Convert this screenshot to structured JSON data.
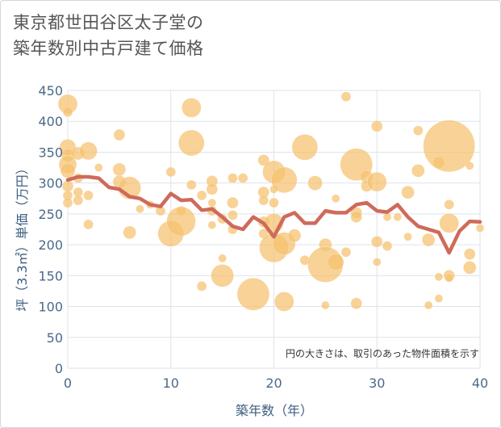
{
  "chart_data": {
    "type": "scatter",
    "title_lines": [
      "東京都世田谷区太子堂の",
      "築年数別中古戸建て価格"
    ],
    "xlabel": "築年数（年）",
    "ylabel": "坪（3.3㎡）単価（万円）",
    "xlim": [
      0,
      40
    ],
    "ylim": [
      0,
      450
    ],
    "xticks": [
      0,
      10,
      20,
      30,
      40
    ],
    "yticks": [
      0,
      50,
      100,
      150,
      200,
      250,
      300,
      350,
      400,
      450
    ],
    "grid": true,
    "annotation": "円の大きさは、取引のあった物件面積を示す",
    "colors": {
      "bubble": "#f5c06e",
      "line": "#cf6a5a",
      "grid": "#dde3ea"
    },
    "bubbles": [
      {
        "x": 0,
        "y": 428,
        "s": 12
      },
      {
        "x": 0,
        "y": 415,
        "s": 6
      },
      {
        "x": 0,
        "y": 358,
        "s": 10
      },
      {
        "x": 0,
        "y": 345,
        "s": 8
      },
      {
        "x": 0,
        "y": 330,
        "s": 11
      },
      {
        "x": 0,
        "y": 320,
        "s": 9
      },
      {
        "x": 0,
        "y": 295,
        "s": 7
      },
      {
        "x": 0,
        "y": 280,
        "s": 6
      },
      {
        "x": 0,
        "y": 268,
        "s": 6
      },
      {
        "x": 1,
        "y": 348,
        "s": 8
      },
      {
        "x": 1,
        "y": 308,
        "s": 6
      },
      {
        "x": 1,
        "y": 285,
        "s": 6
      },
      {
        "x": 1,
        "y": 272,
        "s": 6
      },
      {
        "x": 2,
        "y": 352,
        "s": 11
      },
      {
        "x": 2,
        "y": 280,
        "s": 6
      },
      {
        "x": 2,
        "y": 233,
        "s": 6
      },
      {
        "x": 3,
        "y": 325,
        "s": 5
      },
      {
        "x": 5,
        "y": 378,
        "s": 7
      },
      {
        "x": 5,
        "y": 322,
        "s": 8
      },
      {
        "x": 5,
        "y": 302,
        "s": 8
      },
      {
        "x": 6,
        "y": 292,
        "s": 14
      },
      {
        "x": 6,
        "y": 220,
        "s": 8
      },
      {
        "x": 7,
        "y": 258,
        "s": 5
      },
      {
        "x": 8,
        "y": 265,
        "s": 5
      },
      {
        "x": 9,
        "y": 255,
        "s": 6
      },
      {
        "x": 10,
        "y": 318,
        "s": 6
      },
      {
        "x": 10,
        "y": 218,
        "s": 16
      },
      {
        "x": 11,
        "y": 255,
        "s": 6
      },
      {
        "x": 11,
        "y": 238,
        "s": 18
      },
      {
        "x": 12,
        "y": 422,
        "s": 12
      },
      {
        "x": 12,
        "y": 365,
        "s": 16
      },
      {
        "x": 12,
        "y": 297,
        "s": 6
      },
      {
        "x": 13,
        "y": 280,
        "s": 6
      },
      {
        "x": 13,
        "y": 133,
        "s": 6
      },
      {
        "x": 14,
        "y": 303,
        "s": 7
      },
      {
        "x": 14,
        "y": 290,
        "s": 7
      },
      {
        "x": 14,
        "y": 268,
        "s": 5
      },
      {
        "x": 14,
        "y": 255,
        "s": 6
      },
      {
        "x": 14,
        "y": 232,
        "s": 5
      },
      {
        "x": 15,
        "y": 242,
        "s": 6
      },
      {
        "x": 15,
        "y": 178,
        "s": 5
      },
      {
        "x": 15,
        "y": 150,
        "s": 14
      },
      {
        "x": 16,
        "y": 308,
        "s": 6
      },
      {
        "x": 16,
        "y": 268,
        "s": 7
      },
      {
        "x": 16,
        "y": 248,
        "s": 6
      },
      {
        "x": 16,
        "y": 225,
        "s": 6
      },
      {
        "x": 17,
        "y": 308,
        "s": 6
      },
      {
        "x": 18,
        "y": 120,
        "s": 20
      },
      {
        "x": 19,
        "y": 337,
        "s": 7
      },
      {
        "x": 19,
        "y": 285,
        "s": 7
      },
      {
        "x": 19,
        "y": 272,
        "s": 6
      },
      {
        "x": 19,
        "y": 237,
        "s": 7
      },
      {
        "x": 19,
        "y": 218,
        "s": 6
      },
      {
        "x": 20,
        "y": 318,
        "s": 14
      },
      {
        "x": 20,
        "y": 290,
        "s": 5
      },
      {
        "x": 20,
        "y": 268,
        "s": 6
      },
      {
        "x": 20,
        "y": 235,
        "s": 12
      },
      {
        "x": 20,
        "y": 195,
        "s": 18
      },
      {
        "x": 21,
        "y": 305,
        "s": 16
      },
      {
        "x": 21,
        "y": 202,
        "s": 14
      },
      {
        "x": 21,
        "y": 108,
        "s": 12
      },
      {
        "x": 22,
        "y": 215,
        "s": 8
      },
      {
        "x": 23,
        "y": 358,
        "s": 16
      },
      {
        "x": 23,
        "y": 175,
        "s": 6
      },
      {
        "x": 24,
        "y": 300,
        "s": 9
      },
      {
        "x": 25,
        "y": 200,
        "s": 8
      },
      {
        "x": 25,
        "y": 168,
        "s": 22
      },
      {
        "x": 25,
        "y": 102,
        "s": 5
      },
      {
        "x": 26,
        "y": 275,
        "s": 5
      },
      {
        "x": 26,
        "y": 172,
        "s": 10
      },
      {
        "x": 27,
        "y": 440,
        "s": 6
      },
      {
        "x": 27,
        "y": 188,
        "s": 6
      },
      {
        "x": 28,
        "y": 330,
        "s": 20
      },
      {
        "x": 28,
        "y": 252,
        "s": 7
      },
      {
        "x": 28,
        "y": 245,
        "s": 7
      },
      {
        "x": 28,
        "y": 105,
        "s": 7
      },
      {
        "x": 29,
        "y": 310,
        "s": 8
      },
      {
        "x": 29,
        "y": 295,
        "s": 7
      },
      {
        "x": 30,
        "y": 392,
        "s": 7
      },
      {
        "x": 30,
        "y": 302,
        "s": 12
      },
      {
        "x": 30,
        "y": 205,
        "s": 7
      },
      {
        "x": 30,
        "y": 172,
        "s": 5
      },
      {
        "x": 31,
        "y": 245,
        "s": 5
      },
      {
        "x": 31,
        "y": 198,
        "s": 6
      },
      {
        "x": 32,
        "y": 245,
        "s": 5
      },
      {
        "x": 33,
        "y": 285,
        "s": 8
      },
      {
        "x": 33,
        "y": 213,
        "s": 5
      },
      {
        "x": 34,
        "y": 385,
        "s": 6
      },
      {
        "x": 34,
        "y": 320,
        "s": 8
      },
      {
        "x": 35,
        "y": 208,
        "s": 8
      },
      {
        "x": 35,
        "y": 102,
        "s": 5
      },
      {
        "x": 36,
        "y": 333,
        "s": 7
      },
      {
        "x": 36,
        "y": 148,
        "s": 5
      },
      {
        "x": 36,
        "y": 113,
        "s": 5
      },
      {
        "x": 37,
        "y": 360,
        "s": 32
      },
      {
        "x": 37,
        "y": 265,
        "s": 6
      },
      {
        "x": 37,
        "y": 235,
        "s": 12
      },
      {
        "x": 37,
        "y": 150,
        "s": 7
      },
      {
        "x": 37,
        "y": 146,
        "s": 5
      },
      {
        "x": 39,
        "y": 328,
        "s": 5
      },
      {
        "x": 39,
        "y": 185,
        "s": 7
      },
      {
        "x": 39,
        "y": 163,
        "s": 8
      },
      {
        "x": 40,
        "y": 227,
        "s": 5
      }
    ],
    "trend": {
      "x": [
        0,
        1,
        2,
        3,
        4,
        5,
        6,
        7,
        8,
        9,
        10,
        11,
        12,
        13,
        14,
        15,
        16,
        17,
        18,
        19,
        20,
        21,
        22,
        23,
        24,
        25,
        26,
        27,
        28,
        29,
        30,
        31,
        32,
        33,
        34,
        35,
        36,
        37,
        38,
        39,
        40
      ],
      "y": [
        305,
        310,
        310,
        308,
        293,
        290,
        278,
        275,
        265,
        262,
        283,
        272,
        273,
        256,
        258,
        245,
        230,
        225,
        245,
        235,
        213,
        245,
        252,
        235,
        235,
        255,
        252,
        252,
        265,
        268,
        255,
        253,
        265,
        245,
        230,
        225,
        220,
        187,
        222,
        238,
        237
      ]
    }
  }
}
